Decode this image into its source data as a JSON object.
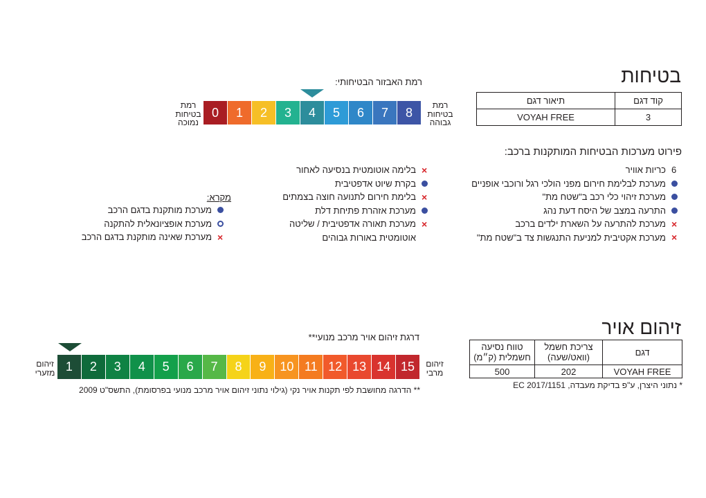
{
  "safety": {
    "title": "בטיחות",
    "table": {
      "headers": [
        "קוד דגם",
        "תיאור דגם"
      ],
      "row": [
        "3",
        "VOYAH FREE"
      ]
    },
    "scale_title": "רמת האבזור הבטיחותי:",
    "scale_high": [
      "רמת",
      "בטיחות",
      "גבוהה"
    ],
    "scale_low": [
      "רמת",
      "בטיחות",
      "נמוכה"
    ],
    "scale": [
      {
        "n": "8",
        "color": "#3d55a6"
      },
      {
        "n": "7",
        "color": "#3a76be"
      },
      {
        "n": "6",
        "color": "#2f87c8"
      },
      {
        "n": "5",
        "color": "#2e9bd7"
      },
      {
        "n": "4",
        "color": "#2d8d9c"
      },
      {
        "n": "3",
        "color": "#23b290"
      },
      {
        "n": "2",
        "color": "#f6bf26"
      },
      {
        "n": "1",
        "color": "#ef6b2b"
      },
      {
        "n": "0",
        "color": "#a91d23"
      }
    ],
    "selected_level": 4,
    "arrow_color": "#2d8d9c",
    "details_title": "פירוט מערכות הבטיחות המותקנות ברכב:",
    "col1": [
      {
        "mark": "num",
        "num": "6",
        "text": "כריות אוויר"
      },
      {
        "mark": "dot",
        "text": "מערכת לבלימת חירום מפני הולכי רגל ורוכבי אופניים"
      },
      {
        "mark": "dot",
        "text": "מערכת זיהוי כלי רכב ב\"שטח מת\""
      },
      {
        "mark": "dot",
        "text": "התרעה במצב של היסח דעת נהג"
      },
      {
        "mark": "x",
        "text": "מערכת להתרעה על השארת ילדים ברכב"
      },
      {
        "mark": "x",
        "text": "מערכת אקטיבית למניעת התנגשות צד ב\"שטח מת\""
      }
    ],
    "col2": [
      {
        "mark": "x",
        "text": "בלימה אוטומטית בנסיעה לאחור"
      },
      {
        "mark": "dot",
        "text": "בקרת שיוט אדפטיבית"
      },
      {
        "mark": "x",
        "text": "בלימת חירום לתנועה חוצה בצמתים"
      },
      {
        "mark": "dot",
        "text": "מערכת אזהרת פתיחת דלת"
      },
      {
        "mark": "x",
        "text": "מערכת תאורה אדפטיבית / שליטה"
      },
      {
        "mark": "none",
        "text": "אוטומטית באורות גבוהים"
      }
    ],
    "legend": {
      "title": "מקרא:",
      "items": [
        {
          "mark": "dot",
          "text": "מערכת מותקנת בדגם הרכב"
        },
        {
          "mark": "ring",
          "text": "מערכת אופציונאלית להתקנה"
        },
        {
          "mark": "x",
          "text": "מערכת שאינה מותקנת בדגם הרכב"
        }
      ]
    }
  },
  "pollution": {
    "title": "זיהום אויר",
    "table": {
      "headers": [
        "דגם",
        "צריכת חשמל (וואט/שעה)",
        "טווח נסיעה חשמלית (ק\"מ)"
      ],
      "header_lines": [
        [
          "דגם"
        ],
        [
          "צריכת חשמל",
          "(וואט/שעה)"
        ],
        [
          "טווח נסיעה",
          "חשמלית (ק״מ)"
        ]
      ],
      "row": [
        "VOYAH FREE",
        "202",
        "500"
      ]
    },
    "footnote": "* נתוני היצרן, ע\"פ בדיקת מעבדה, EC 2017/1151",
    "scale_title": "דרגת זיהום אויר מרכב מנועי**",
    "scale_max": [
      "זיהום",
      "מרבי"
    ],
    "scale_min": [
      "זיהום",
      "מזערי"
    ],
    "scale": [
      {
        "n": "15",
        "color": "#c1272d"
      },
      {
        "n": "14",
        "color": "#d9332e"
      },
      {
        "n": "13",
        "color": "#e9492f"
      },
      {
        "n": "12",
        "color": "#f15a2b"
      },
      {
        "n": "11",
        "color": "#f47b20"
      },
      {
        "n": "10",
        "color": "#f79420"
      },
      {
        "n": "9",
        "color": "#f8b117"
      },
      {
        "n": "8",
        "color": "#f5d319"
      },
      {
        "n": "7",
        "color": "#56b847"
      },
      {
        "n": "6",
        "color": "#2aa84a"
      },
      {
        "n": "5",
        "color": "#13a04b"
      },
      {
        "n": "4",
        "color": "#10914a"
      },
      {
        "n": "3",
        "color": "#0f8244"
      },
      {
        "n": "2",
        "color": "#0f6b3b"
      },
      {
        "n": "1",
        "color": "#1d4d36"
      }
    ],
    "selected_level": 1,
    "arrow_color": "#1d4d36",
    "scale_footnote": "** הדרגה מחושבת לפי תקנות אויר נקי (גילוי נתוני זיהום אויר מרכב מנועי בפרסומת), התשס\"ט 2009"
  }
}
